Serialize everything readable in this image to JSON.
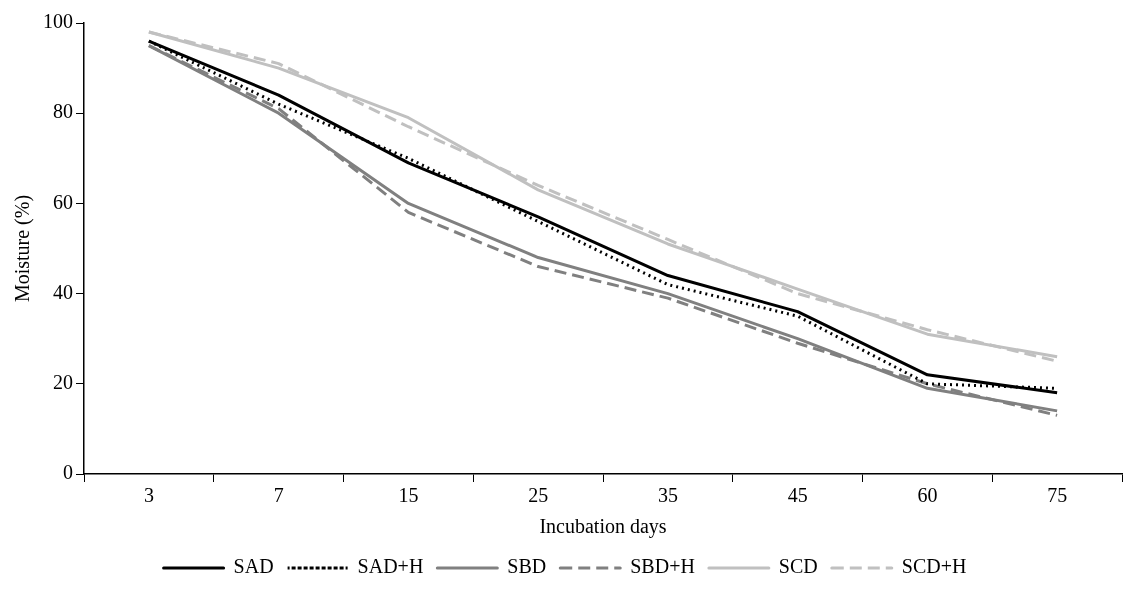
{
  "chart_data": {
    "type": "line",
    "xlabel": "Incubation days",
    "ylabel": "Moisture (%)",
    "categories": [
      "3",
      "7",
      "15",
      "25",
      "35",
      "45",
      "60",
      "75"
    ],
    "series": [
      {
        "name": "SAD",
        "color": "#000000",
        "line_style": "solid",
        "values": [
          96,
          84,
          69,
          57,
          44,
          36,
          22,
          18
        ]
      },
      {
        "name": "SAD+H",
        "color": "#000000",
        "line_style": "dotted",
        "values": [
          96,
          82,
          70,
          56,
          42,
          35,
          20,
          19
        ]
      },
      {
        "name": "SBD",
        "color": "#808080",
        "line_style": "solid",
        "values": [
          95,
          80,
          60,
          48,
          40,
          30,
          19,
          14
        ]
      },
      {
        "name": "SBD+H",
        "color": "#808080",
        "line_style": "dashed",
        "values": [
          95,
          81,
          58,
          46,
          39,
          29,
          20,
          13
        ]
      },
      {
        "name": "SCD",
        "color": "#c0c0c0",
        "line_style": "solid",
        "values": [
          98,
          90,
          79,
          63,
          51,
          41,
          31,
          26
        ]
      },
      {
        "name": "SCD+H",
        "color": "#c0c0c0",
        "line_style": "dashed",
        "values": [
          98,
          91,
          77,
          64,
          52,
          40,
          32,
          25
        ]
      }
    ],
    "ylim": [
      0,
      100
    ],
    "yticks": [
      0,
      20,
      40,
      60,
      80,
      100
    ],
    "grid": false,
    "legend": "bottom",
    "marker": "none"
  }
}
